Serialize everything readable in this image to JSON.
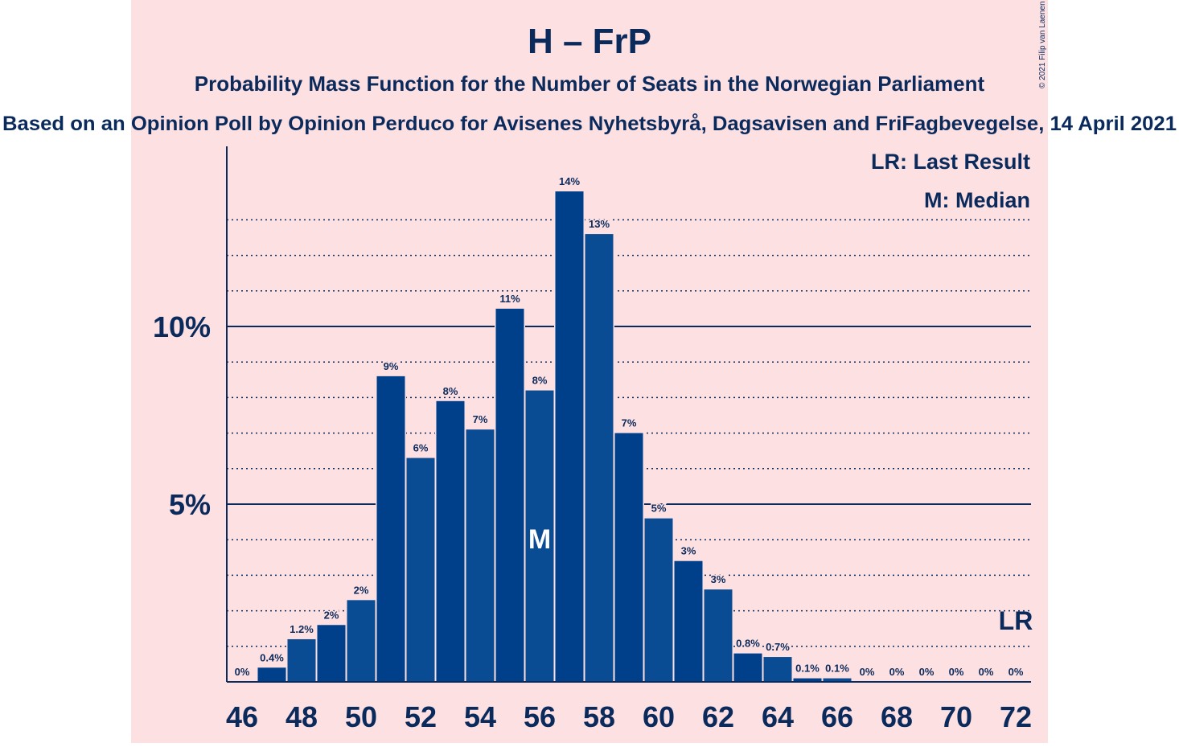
{
  "copyright": "© 2021 Filip van Laenen",
  "colors": {
    "background": "#fde0e2",
    "bar_dark": "#003f8a",
    "bar_light": "#0a4c94",
    "text": "#0b2a5c",
    "grid": "#0b2a5c",
    "frame": "#ffffff"
  },
  "chart_data": {
    "type": "bar",
    "title": "H – FrP",
    "subtitle": "Probability Mass Function for the Number of Seats in the Norwegian Parliament",
    "source": "Based on an Opinion Poll by Opinion Perduco for Avisenes Nyhetsbyrå, Dagsavisen and FriFagbevegelse, 14 April 2021",
    "xlabel": "",
    "ylabel": "",
    "x": [
      46,
      47,
      48,
      49,
      50,
      51,
      52,
      53,
      54,
      55,
      56,
      57,
      58,
      59,
      60,
      61,
      62,
      63,
      64,
      65,
      66,
      67,
      68,
      69,
      70,
      71,
      72
    ],
    "values": [
      0,
      0.4,
      1.2,
      1.6,
      2.3,
      8.6,
      6.3,
      7.9,
      7.1,
      10.5,
      8.2,
      13.8,
      12.6,
      7.0,
      4.6,
      3.4,
      2.6,
      0.8,
      0.7,
      0.1,
      0.1,
      0,
      0,
      0,
      0,
      0,
      0
    ],
    "bar_labels": [
      "0%",
      "0.4%",
      "1.2%",
      "2%",
      "2%",
      "9%",
      "6%",
      "8%",
      "7%",
      "11%",
      "8%",
      "14%",
      "13%",
      "7%",
      "5%",
      "3%",
      "3%",
      "0.8%",
      "0.7%",
      "0.1%",
      "0.1%",
      "0%",
      "0%",
      "0%",
      "0%",
      "0%",
      "0%"
    ],
    "xticks": [
      "46",
      "48",
      "50",
      "52",
      "54",
      "56",
      "58",
      "60",
      "62",
      "64",
      "66",
      "68",
      "70",
      "72"
    ],
    "ylim": [
      0,
      15
    ],
    "yticks": [
      {
        "value": 5,
        "label": "5%"
      },
      {
        "value": 10,
        "label": "10%"
      }
    ],
    "minor_gridlines": [
      1,
      2,
      3,
      4,
      6,
      7,
      8,
      9,
      11,
      12,
      13
    ],
    "median": {
      "seat": 56,
      "label": "M"
    },
    "last_result": {
      "seat": 72,
      "label": "LR"
    },
    "legend": [
      "LR: Last Result",
      "M: Median"
    ]
  }
}
